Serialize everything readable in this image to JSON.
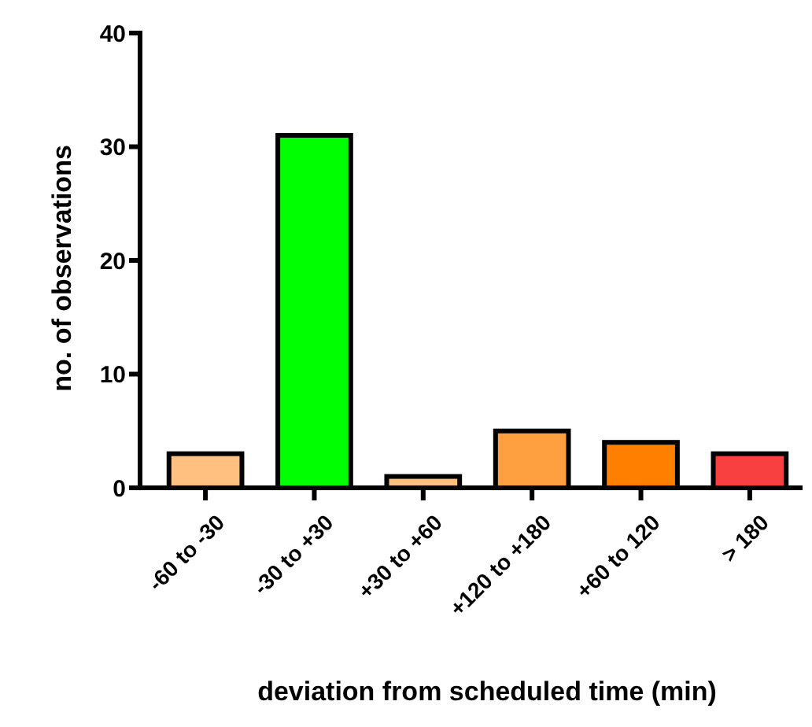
{
  "chart_data": {
    "type": "bar",
    "xlabel": "deviation from scheduled time (min)",
    "ylabel": "no. of observations",
    "categories": [
      "-60 to -30",
      "-30 to +30",
      "+30 to +60",
      "+120 to +180",
      "+60 to 120",
      "> 180"
    ],
    "values": [
      3,
      31,
      1,
      5,
      4,
      3
    ],
    "colors": [
      "#ffc080",
      "#00ff00",
      "#ffc080",
      "#ffa040",
      "#ff8000",
      "#f84040"
    ],
    "ylim": [
      0,
      40
    ],
    "yticks": [
      0,
      10,
      20,
      30,
      40
    ],
    "grid": false
  }
}
